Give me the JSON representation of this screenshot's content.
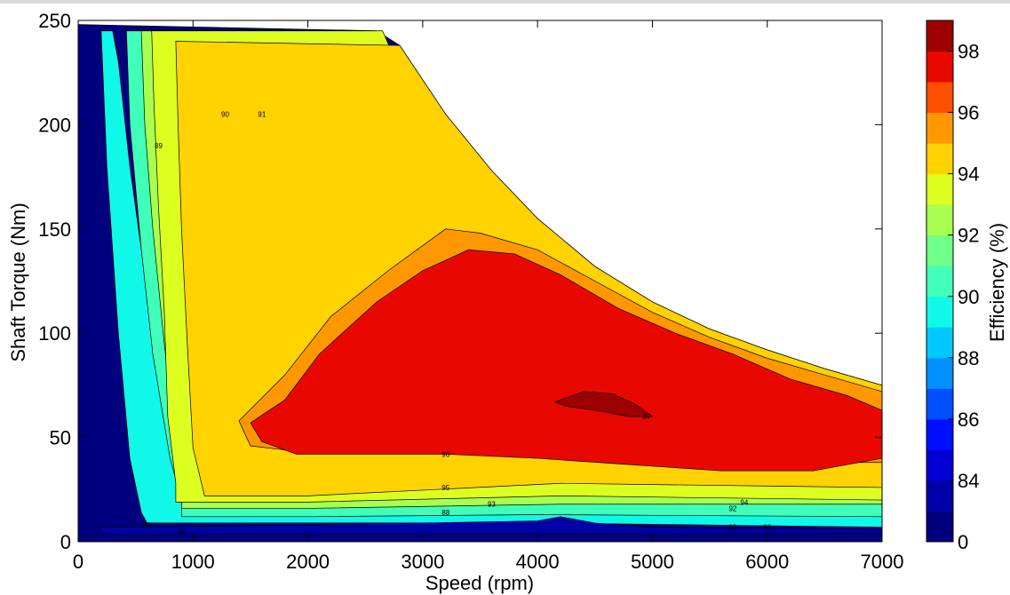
{
  "chart_data": {
    "type": "contour",
    "title": "",
    "xlabel": "Speed  (rpm)",
    "ylabel": "Shaft Torque  (Nm)",
    "xlim": [
      0,
      7000
    ],
    "ylim": [
      0,
      250
    ],
    "x_ticks": [
      "0",
      "1000",
      "2000",
      "3000",
      "4000",
      "5000",
      "6000",
      "7000"
    ],
    "y_ticks": [
      "0",
      "50",
      "100",
      "150",
      "200",
      "250"
    ],
    "colorbar": {
      "label": "Efficiency (%)",
      "ticks": [
        "0",
        "84",
        "86",
        "88",
        "90",
        "92",
        "94",
        "96",
        "98"
      ],
      "levels": [
        0,
        83,
        84,
        85,
        86,
        87,
        88,
        89,
        90,
        91,
        92,
        93,
        94,
        95,
        96,
        97,
        98
      ],
      "colors": [
        "#00007f",
        "#0000a8",
        "#0000d4",
        "#0010ff",
        "#0050ff",
        "#0090ff",
        "#00c8ff",
        "#10f8e8",
        "#40ffb8",
        "#70ff88",
        "#a8ff50",
        "#ddff20",
        "#ffd200",
        "#ff9800",
        "#ff5000",
        "#e80800",
        "#9c0000"
      ]
    },
    "envelope": {
      "speed": [
        0,
        2600,
        2800,
        3200,
        3600,
        4000,
        4500,
        5000,
        5500,
        6000,
        6500,
        7000
      ],
      "max_torque": [
        248,
        245,
        238,
        205,
        178,
        155,
        132,
        115,
        102,
        92,
        83,
        75
      ]
    },
    "regions": [
      {
        "level": 89,
        "points": [
          [
            300,
            245
          ],
          [
            350,
            230
          ],
          [
            450,
            180
          ],
          [
            600,
            120
          ],
          [
            800,
            70
          ],
          [
            1000,
            45
          ],
          [
            2000,
            30
          ],
          [
            4000,
            22
          ],
          [
            7000,
            16
          ],
          [
            7000,
            7
          ],
          [
            4000,
            9
          ],
          [
            2000,
            9
          ],
          [
            600,
            9
          ],
          [
            550,
            14
          ],
          [
            450,
            40
          ],
          [
            350,
            100
          ],
          [
            250,
            180
          ],
          [
            200,
            245
          ]
        ]
      },
      {
        "level": 90,
        "points": [
          [
            1150,
            245
          ],
          [
            1250,
            215
          ],
          [
            1400,
            185
          ],
          [
            1550,
            150
          ],
          [
            1700,
            110
          ],
          [
            1850,
            75
          ],
          [
            2100,
            45
          ],
          [
            3000,
            35
          ],
          [
            4000,
            30
          ],
          [
            7000,
            22
          ],
          [
            7000,
            12
          ],
          [
            4000,
            13
          ],
          [
            2000,
            12
          ],
          [
            900,
            12
          ],
          [
            900,
            20
          ],
          [
            800,
            40
          ],
          [
            650,
            90
          ],
          [
            550,
            140
          ],
          [
            450,
            200
          ],
          [
            420,
            245
          ]
        ]
      },
      {
        "level": 92,
        "points": [
          [
            1900,
            245
          ],
          [
            2100,
            225
          ],
          [
            2300,
            195
          ],
          [
            2550,
            150
          ],
          [
            2800,
            100
          ],
          [
            3100,
            65
          ],
          [
            3700,
            48
          ],
          [
            4700,
            40
          ],
          [
            7000,
            30
          ],
          [
            7000,
            18
          ],
          [
            4200,
            18
          ],
          [
            2000,
            16
          ],
          [
            900,
            16
          ],
          [
            900,
            24
          ],
          [
            850,
            45
          ],
          [
            750,
            95
          ],
          [
            650,
            150
          ],
          [
            580,
            200
          ],
          [
            550,
            245
          ]
        ]
      },
      {
        "level": 93,
        "points": [
          [
            2650,
            245
          ],
          [
            2850,
            220
          ],
          [
            3100,
            185
          ],
          [
            3300,
            160
          ],
          [
            3450,
            130
          ],
          [
            3550,
            100
          ],
          [
            3700,
            78
          ],
          [
            4200,
            60
          ],
          [
            5300,
            45
          ],
          [
            7000,
            34
          ],
          [
            7000,
            20
          ],
          [
            4200,
            22
          ],
          [
            2000,
            19
          ],
          [
            850,
            19
          ],
          [
            850,
            28
          ],
          [
            780,
            60
          ],
          [
            750,
            110
          ],
          [
            700,
            160
          ],
          [
            660,
            210
          ],
          [
            640,
            245
          ]
        ]
      },
      {
        "level": 94,
        "points": [
          [
            2800,
            238
          ],
          [
            3200,
            205
          ],
          [
            3600,
            178
          ],
          [
            4000,
            155
          ],
          [
            4500,
            132
          ],
          [
            5000,
            115
          ],
          [
            5500,
            102
          ],
          [
            6000,
            92
          ],
          [
            6500,
            83
          ],
          [
            7000,
            75
          ],
          [
            7000,
            26
          ],
          [
            4200,
            28
          ],
          [
            2000,
            22
          ],
          [
            1100,
            22
          ],
          [
            1000,
            45
          ],
          [
            950,
            95
          ],
          [
            900,
            150
          ],
          [
            870,
            200
          ],
          [
            850,
            240
          ]
        ]
      }
    ],
    "contour_labels": [
      "89",
      "89",
      "85",
      "90",
      "91",
      "88",
      "95",
      "93",
      "96",
      "92",
      "94",
      "92",
      "83",
      "87",
      "97"
    ]
  }
}
